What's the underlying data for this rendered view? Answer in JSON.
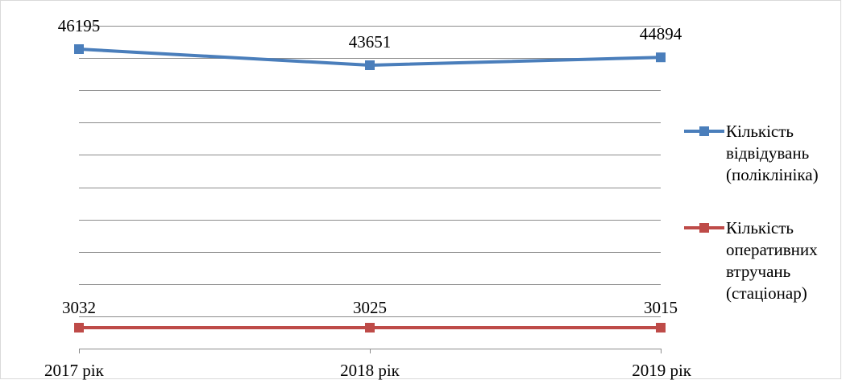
{
  "chart_data": {
    "type": "line",
    "title": "",
    "xlabel": "",
    "ylabel": "",
    "categories": [
      "2017 рік",
      "2018 рік",
      "2019 рік"
    ],
    "series": [
      {
        "name": "Кількість\nвідвідувань\n(поліклініка)",
        "values": [
          46195,
          43651,
          44894
        ],
        "labels": [
          "46195",
          "43651",
          "44894"
        ],
        "color": "#4a7ebb",
        "marker": "square"
      },
      {
        "name": "Кількість\nоперативних\nвтручань\n(стаціонар)",
        "values": [
          3032,
          3025,
          3015
        ],
        "labels": [
          "3032",
          "3025",
          "3015"
        ],
        "color": "#be4b48",
        "marker": "square"
      }
    ],
    "grid": true,
    "legend_position": "right"
  }
}
